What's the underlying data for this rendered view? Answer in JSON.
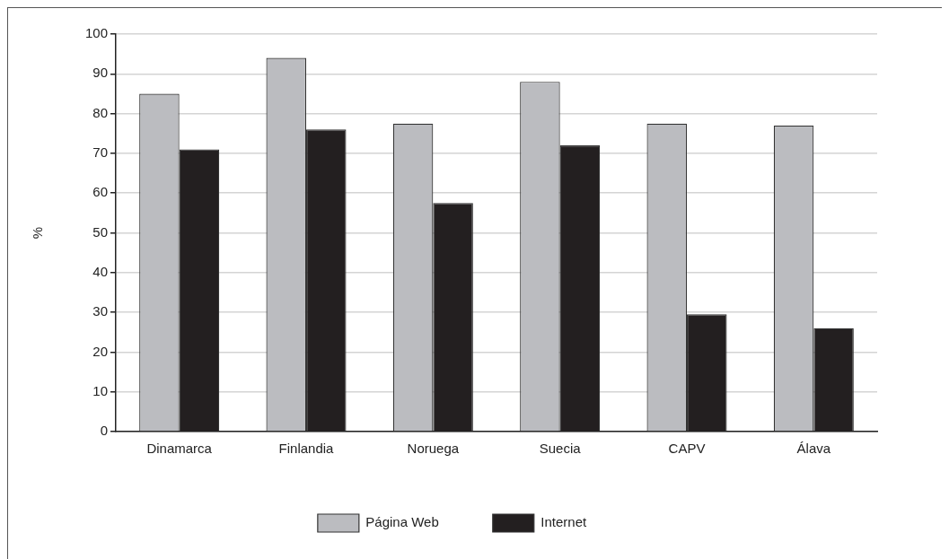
{
  "chart_data": {
    "type": "bar",
    "ylabel": "%",
    "categories": [
      "Dinamarca",
      "Finlandia",
      "Noruega",
      "Suecia",
      "CAPV",
      "Álava"
    ],
    "series": [
      {
        "name": "Página Web",
        "color": "#bbbcc0",
        "values": [
          85,
          94,
          77.5,
          88,
          77.5,
          77
        ]
      },
      {
        "name": "Internet",
        "color": "#231f20",
        "values": [
          71,
          76,
          57.5,
          72,
          29.5,
          26
        ]
      }
    ],
    "ylim": [
      0,
      100
    ],
    "yticks": [
      0,
      10,
      20,
      30,
      40,
      50,
      60,
      70,
      80,
      90,
      100
    ],
    "grid": "y",
    "legend": "bottom"
  }
}
